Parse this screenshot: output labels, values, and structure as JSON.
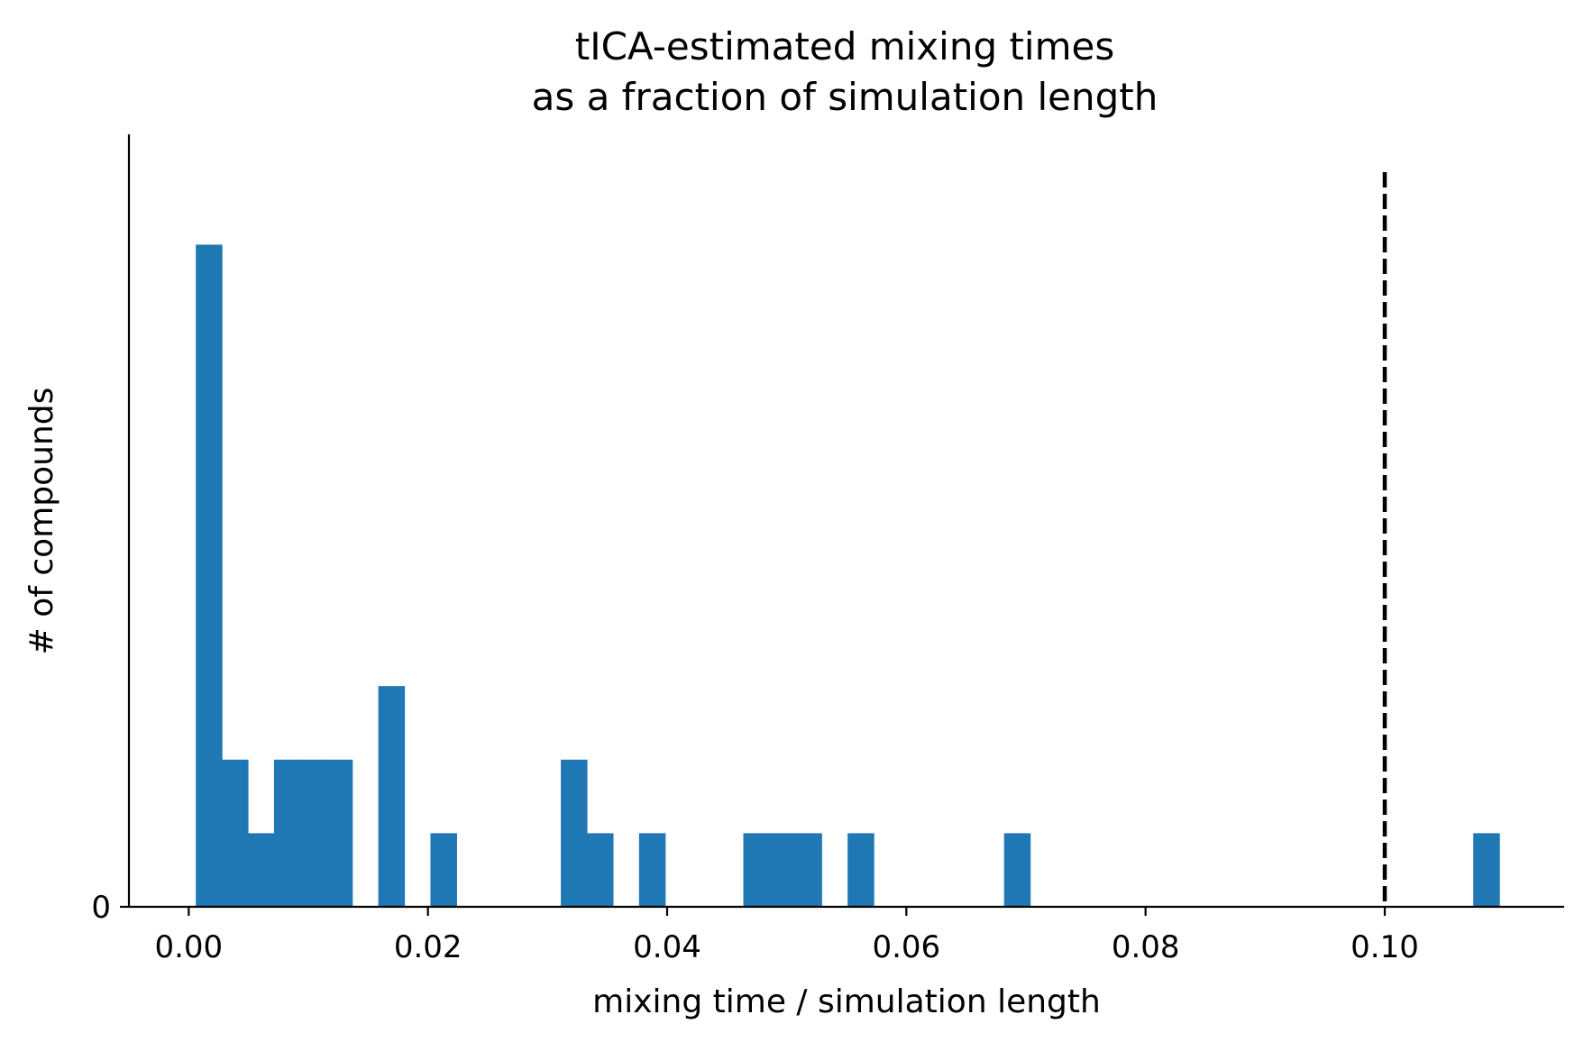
{
  "chart_data": {
    "type": "bar",
    "title": [
      "tICA-estimated mixing times",
      "as a fraction of simulation length"
    ],
    "xlabel": "mixing time / simulation length",
    "ylabel": "# of compounds",
    "xlim": [
      -0.005,
      0.115
    ],
    "ylim": [
      0,
      10.5
    ],
    "xticks": [
      0.0,
      0.02,
      0.04,
      0.06,
      0.08,
      0.1
    ],
    "xtick_labels": [
      "0.00",
      "0.02",
      "0.04",
      "0.06",
      "0.08",
      "0.10"
    ],
    "yticks": [
      0
    ],
    "ytick_labels": [
      "0"
    ],
    "bin_width": 0.00218,
    "bins": [
      {
        "start": 0.00059,
        "count": 9
      },
      {
        "start": 0.00277,
        "count": 2
      },
      {
        "start": 0.00495,
        "count": 1
      },
      {
        "start": 0.00713,
        "count": 2
      },
      {
        "start": 0.00931,
        "count": 2
      },
      {
        "start": 0.01149,
        "count": 2
      },
      {
        "start": 0.01585,
        "count": 3
      },
      {
        "start": 0.02021,
        "count": 1
      },
      {
        "start": 0.03111,
        "count": 2
      },
      {
        "start": 0.03329,
        "count": 1
      },
      {
        "start": 0.03765,
        "count": 1
      },
      {
        "start": 0.04637,
        "count": 1
      },
      {
        "start": 0.04855,
        "count": 1
      },
      {
        "start": 0.05073,
        "count": 1
      },
      {
        "start": 0.05509,
        "count": 1
      },
      {
        "start": 0.06817,
        "count": 1
      },
      {
        "start": 0.1074,
        "count": 1
      }
    ],
    "threshold": 0.1,
    "threshold_style": "dashed",
    "bar_color": "#1f77b4",
    "threshold_color": "#000000",
    "grid": false
  }
}
